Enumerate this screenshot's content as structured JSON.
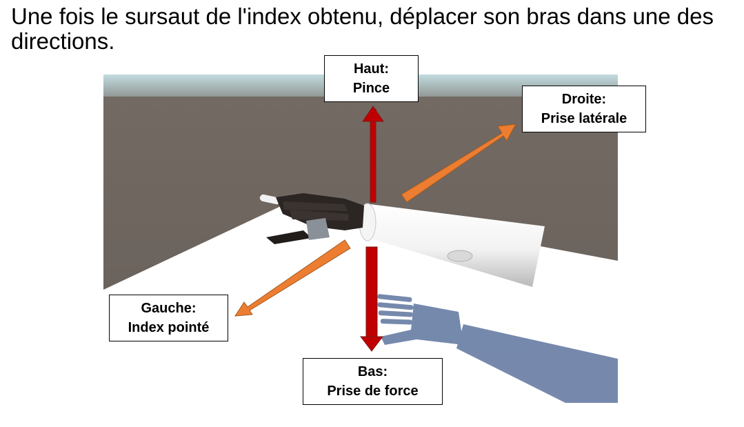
{
  "title": "Une fois le sursaut de l'index obtenu, déplacer son bras dans une des directions.",
  "directions": {
    "haut": {
      "line1": "Haut:",
      "line2": "Pince"
    },
    "droite": {
      "line1": "Droite:",
      "line2": "Prise latérale"
    },
    "gauche": {
      "line1": "Gauche:",
      "line2": "Index pointé"
    },
    "bas": {
      "line1": "Bas:",
      "line2": "Prise de force"
    }
  },
  "colors": {
    "vertical_arrow": "#c00000",
    "diagonal_arrow": "#ed7d31",
    "wall": "#6e6660",
    "floor": "#ffffff",
    "sky": "#b7d0d3",
    "hand": "#2b2523",
    "shadow": "#6a7fa5"
  }
}
